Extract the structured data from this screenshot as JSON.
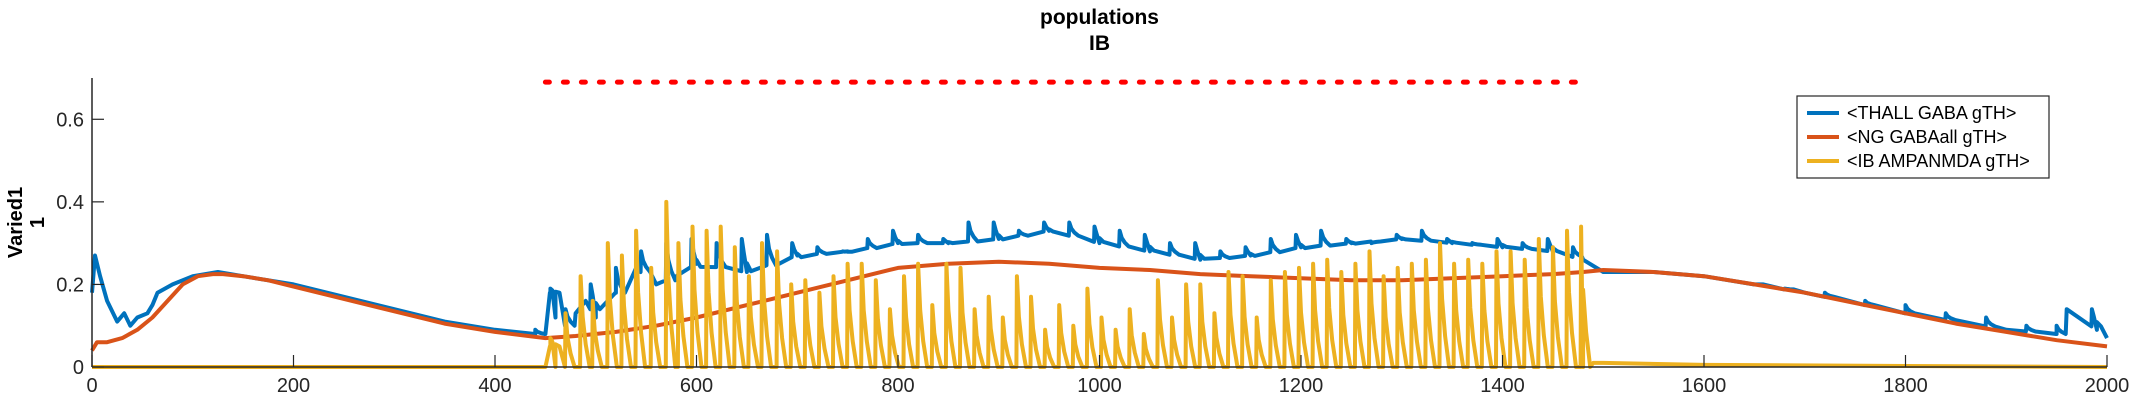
{
  "chart_data": {
    "type": "line",
    "title": [
      "populations",
      "IB"
    ],
    "ylabel": [
      "Varied1",
      "1"
    ],
    "xlabel": "",
    "xlim": [
      0,
      2000
    ],
    "ylim": [
      0,
      0.7
    ],
    "xticks": [
      0,
      200,
      400,
      600,
      800,
      1000,
      1200,
      1400,
      1600,
      1800,
      2000
    ],
    "yticks": [
      0,
      0.2,
      0.4,
      0.6
    ],
    "grid": false,
    "legend_location": "top-right",
    "stimulus_marker": {
      "style": "red dotted line",
      "y": 0.69,
      "x_start": 450,
      "x_end": 1480,
      "color": "#ff0000"
    },
    "series": [
      {
        "name": "<THALL GABA gTH>",
        "color": "#0072BD",
        "x": [
          0,
          3,
          8,
          15,
          25,
          32,
          38,
          45,
          55,
          60,
          65,
          80,
          100,
          125,
          150,
          200,
          250,
          300,
          350,
          400,
          440,
          450,
          455,
          460,
          470,
          480,
          490,
          500,
          520,
          540,
          560,
          580,
          600,
          650,
          700,
          750,
          800,
          850,
          900,
          950,
          1000,
          1050,
          1100,
          1150,
          1200,
          1250,
          1300,
          1350,
          1400,
          1450,
          1480,
          1500,
          1550,
          1600,
          1650,
          1700,
          1800,
          1900,
          1950,
          1960,
          1990,
          2000
        ],
        "y": [
          0.18,
          0.27,
          0.22,
          0.16,
          0.11,
          0.13,
          0.1,
          0.12,
          0.13,
          0.15,
          0.18,
          0.2,
          0.22,
          0.23,
          0.22,
          0.2,
          0.17,
          0.14,
          0.11,
          0.09,
          0.08,
          0.08,
          0.18,
          0.12,
          0.1,
          0.13,
          0.16,
          0.12,
          0.18,
          0.24,
          0.2,
          0.22,
          0.25,
          0.23,
          0.27,
          0.28,
          0.3,
          0.3,
          0.31,
          0.33,
          0.3,
          0.28,
          0.26,
          0.27,
          0.29,
          0.3,
          0.31,
          0.3,
          0.29,
          0.28,
          0.26,
          0.23,
          0.23,
          0.22,
          0.2,
          0.18,
          0.13,
          0.09,
          0.08,
          0.14,
          0.09,
          0.07
        ],
        "spikes": {
          "x": [
            440,
            455,
            470,
            495,
            520,
            545,
            570,
            595,
            620,
            645,
            670,
            695,
            720,
            745,
            770,
            795,
            820,
            845,
            870,
            895,
            920,
            945,
            970,
            995,
            1020,
            1045,
            1070,
            1095,
            1120,
            1145,
            1170,
            1195,
            1220,
            1245,
            1270,
            1295,
            1320,
            1345,
            1370,
            1395,
            1420,
            1445,
            1470,
            1650,
            1680,
            1720,
            1760,
            1800,
            1840,
            1880,
            1920,
            1950,
            1985
          ],
          "y": [
            0.09,
            0.19,
            0.14,
            0.2,
            0.24,
            0.28,
            0.3,
            0.31,
            0.3,
            0.31,
            0.32,
            0.3,
            0.29,
            0.28,
            0.31,
            0.33,
            0.32,
            0.31,
            0.35,
            0.35,
            0.33,
            0.35,
            0.35,
            0.34,
            0.33,
            0.32,
            0.3,
            0.3,
            0.28,
            0.29,
            0.31,
            0.32,
            0.33,
            0.31,
            0.3,
            0.32,
            0.33,
            0.31,
            0.3,
            0.31,
            0.3,
            0.31,
            0.29,
            0.2,
            0.19,
            0.18,
            0.16,
            0.15,
            0.13,
            0.12,
            0.1,
            0.1,
            0.14
          ]
        }
      },
      {
        "name": "<NG GABAall gTH>",
        "color": "#D95319",
        "x": [
          0,
          5,
          15,
          30,
          45,
          60,
          75,
          90,
          105,
          120,
          130,
          150,
          175,
          200,
          250,
          300,
          350,
          400,
          450,
          480,
          520,
          560,
          600,
          650,
          700,
          750,
          800,
          850,
          900,
          950,
          1000,
          1050,
          1100,
          1150,
          1200,
          1250,
          1300,
          1350,
          1400,
          1450,
          1480,
          1500,
          1550,
          1600,
          1650,
          1700,
          1750,
          1800,
          1850,
          1900,
          1950,
          2000
        ],
        "y": [
          0.04,
          0.06,
          0.06,
          0.07,
          0.09,
          0.12,
          0.16,
          0.2,
          0.22,
          0.225,
          0.225,
          0.22,
          0.21,
          0.195,
          0.165,
          0.135,
          0.105,
          0.085,
          0.07,
          0.075,
          0.085,
          0.1,
          0.12,
          0.15,
          0.18,
          0.21,
          0.24,
          0.25,
          0.255,
          0.25,
          0.24,
          0.235,
          0.225,
          0.22,
          0.215,
          0.21,
          0.21,
          0.215,
          0.22,
          0.225,
          0.23,
          0.235,
          0.23,
          0.22,
          0.2,
          0.18,
          0.155,
          0.13,
          0.105,
          0.085,
          0.065,
          0.05
        ]
      },
      {
        "name": "<IB AMPANMDA gTH>",
        "color": "#EDB120",
        "x": [
          0,
          440,
          450,
          455,
          460,
          1480,
          1490,
          1500,
          1600,
          2000
        ],
        "y": [
          0.0,
          0.0,
          0.0,
          0.05,
          0.0,
          0.0,
          0.01,
          0.01,
          0.005,
          0.0
        ],
        "spikes": {
          "x": [
            455,
            470,
            485,
            497,
            512,
            526,
            540,
            555,
            570,
            582,
            596,
            610,
            624,
            638,
            652,
            665,
            680,
            694,
            708,
            722,
            736,
            750,
            764,
            778,
            792,
            806,
            820,
            834,
            848,
            862,
            876,
            890,
            904,
            918,
            932,
            946,
            960,
            974,
            988,
            1002,
            1016,
            1030,
            1044,
            1058,
            1072,
            1086,
            1100,
            1114,
            1128,
            1142,
            1156,
            1170,
            1184,
            1198,
            1212,
            1226,
            1240,
            1254,
            1268,
            1282,
            1296,
            1310,
            1324,
            1338,
            1352,
            1366,
            1380,
            1394,
            1408,
            1422,
            1436,
            1450,
            1464,
            1478
          ],
          "y": [
            0.07,
            0.13,
            0.22,
            0.16,
            0.3,
            0.27,
            0.33,
            0.24,
            0.4,
            0.3,
            0.34,
            0.33,
            0.34,
            0.29,
            0.22,
            0.3,
            0.28,
            0.2,
            0.21,
            0.18,
            0.22,
            0.25,
            0.25,
            0.21,
            0.14,
            0.22,
            0.25,
            0.15,
            0.25,
            0.24,
            0.14,
            0.17,
            0.12,
            0.22,
            0.17,
            0.09,
            0.15,
            0.1,
            0.19,
            0.12,
            0.09,
            0.14,
            0.08,
            0.21,
            0.12,
            0.2,
            0.2,
            0.13,
            0.23,
            0.22,
            0.12,
            0.21,
            0.23,
            0.24,
            0.25,
            0.26,
            0.23,
            0.25,
            0.28,
            0.22,
            0.24,
            0.25,
            0.26,
            0.3,
            0.25,
            0.26,
            0.25,
            0.28,
            0.28,
            0.26,
            0.31,
            0.29,
            0.33,
            0.34
          ]
        }
      }
    ]
  }
}
